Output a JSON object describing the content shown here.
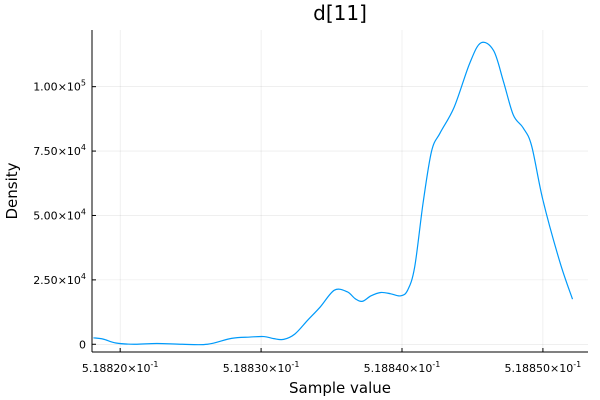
{
  "chart_data": {
    "type": "line",
    "title": "d[11]",
    "xlabel": "Sample value",
    "ylabel": "Density",
    "grid": true,
    "legend": "none",
    "xlim": [
      0.518818,
      0.5188532
    ],
    "ylim": [
      -3000,
      122000
    ],
    "xticks": [
      {
        "value": 0.51882,
        "mantissa": "5.18820",
        "exponent": "-1"
      },
      {
        "value": 0.51883,
        "mantissa": "5.18830",
        "exponent": "-1"
      },
      {
        "value": 0.51884,
        "mantissa": "5.18840",
        "exponent": "-1"
      },
      {
        "value": 0.51885,
        "mantissa": "5.18850",
        "exponent": "-1"
      }
    ],
    "yticks": [
      {
        "value": 0,
        "mantissa": "0",
        "exponent": ""
      },
      {
        "value": 25000,
        "mantissa": "2.50",
        "exponent": "4"
      },
      {
        "value": 50000,
        "mantissa": "5.00",
        "exponent": "4"
      },
      {
        "value": 75000,
        "mantissa": "7.50",
        "exponent": "4"
      },
      {
        "value": 100000,
        "mantissa": "1.00",
        "exponent": "5"
      }
    ],
    "series": [
      {
        "color": "#009AFA",
        "x": [
          0.5188181,
          0.5188188,
          0.5188197,
          0.518821,
          0.5188226,
          0.5188244,
          0.5188262,
          0.5188279,
          0.5188292,
          0.5188302,
          0.5188309,
          0.5188316,
          0.5188324,
          0.5188333,
          0.5188342,
          0.5188352,
          0.5188361,
          0.5188367,
          0.5188372,
          0.5188378,
          0.5188385,
          0.5188392,
          0.5188399,
          0.5188404,
          0.5188409,
          0.5188415,
          0.5188421,
          0.5188427,
          0.5188437,
          0.5188448,
          0.5188456,
          0.5188465,
          0.5188472,
          0.5188479,
          0.5188486,
          0.5188492,
          0.51885,
          0.5188512,
          0.5188521
        ],
        "y": [
          2500,
          2000,
          500,
          0,
          300,
          0,
          0,
          2300,
          2800,
          3000,
          2200,
          1900,
          4000,
          9300,
          14500,
          21000,
          20400,
          17600,
          16700,
          18800,
          20100,
          19600,
          18800,
          21000,
          30000,
          55000,
          75000,
          82000,
          92000,
          109000,
          117000,
          114000,
          102000,
          89000,
          84000,
          77000,
          56000,
          32000,
          17500
        ]
      }
    ]
  }
}
